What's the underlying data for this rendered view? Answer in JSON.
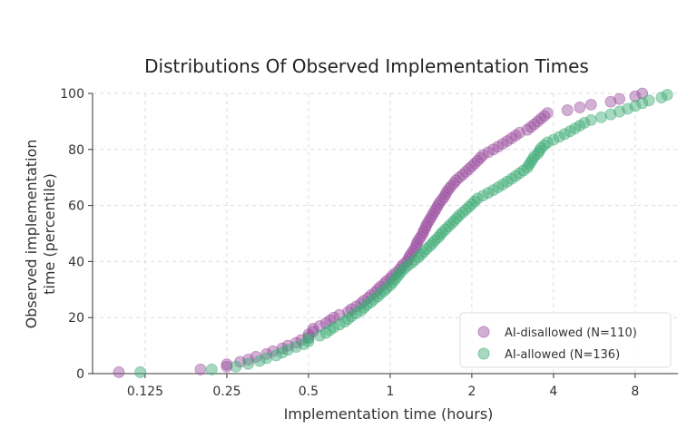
{
  "chart_data": {
    "type": "scatter",
    "title": "Distributions Of Observed Implementation Times",
    "xlabel": "Implementation time (hours)",
    "ylabel": [
      "Observed implementation",
      "time (percentile)"
    ],
    "x_scale": "log2",
    "xlim": [
      0.08,
      11.5
    ],
    "ylim": [
      0,
      100
    ],
    "x_ticks": [
      {
        "value": 0.125,
        "label": "0.125"
      },
      {
        "value": 0.25,
        "label": "0.25"
      },
      {
        "value": 0.5,
        "label": "0.5"
      },
      {
        "value": 1,
        "label": "1"
      },
      {
        "value": 2,
        "label": "2"
      },
      {
        "value": 4,
        "label": "4"
      },
      {
        "value": 8,
        "label": "8"
      }
    ],
    "y_ticks": [
      {
        "value": 0,
        "label": "0"
      },
      {
        "value": 20,
        "label": "20"
      },
      {
        "value": 40,
        "label": "40"
      },
      {
        "value": 60,
        "label": "60"
      },
      {
        "value": 80,
        "label": "80"
      },
      {
        "value": 100,
        "label": "100"
      }
    ],
    "grid": true,
    "legend_position": "bottom-right",
    "series": [
      {
        "name": "AI-disallowed (N=110)",
        "color": "#9b4f9f",
        "points": [
          [
            0.1,
            0.5
          ],
          [
            0.2,
            1.5
          ],
          [
            0.25,
            2.5
          ],
          [
            0.25,
            3.3
          ],
          [
            0.28,
            4.2
          ],
          [
            0.3,
            5
          ],
          [
            0.32,
            6
          ],
          [
            0.35,
            7
          ],
          [
            0.37,
            8
          ],
          [
            0.4,
            9
          ],
          [
            0.42,
            10
          ],
          [
            0.45,
            11
          ],
          [
            0.47,
            12
          ],
          [
            0.5,
            13
          ],
          [
            0.5,
            14
          ],
          [
            0.52,
            15
          ],
          [
            0.52,
            16
          ],
          [
            0.55,
            17
          ],
          [
            0.58,
            18
          ],
          [
            0.6,
            19
          ],
          [
            0.62,
            20
          ],
          [
            0.65,
            21
          ],
          [
            0.7,
            22
          ],
          [
            0.72,
            23
          ],
          [
            0.75,
            24
          ],
          [
            0.78,
            25
          ],
          [
            0.8,
            26
          ],
          [
            0.83,
            27
          ],
          [
            0.85,
            28
          ],
          [
            0.88,
            29
          ],
          [
            0.9,
            30
          ],
          [
            0.92,
            31
          ],
          [
            0.95,
            32
          ],
          [
            0.97,
            33
          ],
          [
            1.0,
            34
          ],
          [
            1.02,
            35
          ],
          [
            1.05,
            36
          ],
          [
            1.08,
            37
          ],
          [
            1.1,
            38
          ],
          [
            1.12,
            39
          ],
          [
            1.15,
            40
          ],
          [
            1.17,
            41
          ],
          [
            1.18,
            42
          ],
          [
            1.2,
            43
          ],
          [
            1.22,
            44
          ],
          [
            1.24,
            45
          ],
          [
            1.25,
            46
          ],
          [
            1.26,
            47
          ],
          [
            1.28,
            48
          ],
          [
            1.3,
            49
          ],
          [
            1.32,
            50
          ],
          [
            1.33,
            51
          ],
          [
            1.35,
            52
          ],
          [
            1.36,
            53
          ],
          [
            1.38,
            54
          ],
          [
            1.4,
            55
          ],
          [
            1.42,
            56
          ],
          [
            1.44,
            57
          ],
          [
            1.46,
            58
          ],
          [
            1.48,
            59
          ],
          [
            1.5,
            60
          ],
          [
            1.52,
            61
          ],
          [
            1.55,
            62
          ],
          [
            1.58,
            63
          ],
          [
            1.6,
            64
          ],
          [
            1.62,
            65
          ],
          [
            1.65,
            66
          ],
          [
            1.68,
            67
          ],
          [
            1.72,
            68
          ],
          [
            1.75,
            69
          ],
          [
            1.8,
            70
          ],
          [
            1.85,
            71
          ],
          [
            1.9,
            72
          ],
          [
            1.95,
            73
          ],
          [
            2.0,
            74
          ],
          [
            2.05,
            75
          ],
          [
            2.1,
            76
          ],
          [
            2.15,
            77
          ],
          [
            2.2,
            78
          ],
          [
            2.3,
            79
          ],
          [
            2.4,
            80
          ],
          [
            2.5,
            81
          ],
          [
            2.6,
            82
          ],
          [
            2.7,
            83
          ],
          [
            2.8,
            84
          ],
          [
            2.9,
            85
          ],
          [
            3.0,
            86
          ],
          [
            3.2,
            87
          ],
          [
            3.3,
            88
          ],
          [
            3.4,
            89
          ],
          [
            3.5,
            90
          ],
          [
            3.6,
            91
          ],
          [
            3.7,
            92
          ],
          [
            3.8,
            93
          ],
          [
            4.5,
            94
          ],
          [
            5.0,
            95
          ],
          [
            5.5,
            96
          ],
          [
            6.5,
            97
          ],
          [
            7.0,
            98
          ],
          [
            8.0,
            99
          ],
          [
            8.5,
            100
          ]
        ]
      },
      {
        "name": "AI-allowed (N=136)",
        "color": "#3cab74",
        "points": [
          [
            0.12,
            0.5
          ],
          [
            0.22,
            1.5
          ],
          [
            0.27,
            2.5
          ],
          [
            0.3,
            3.5
          ],
          [
            0.33,
            4.5
          ],
          [
            0.35,
            5.5
          ],
          [
            0.38,
            6.5
          ],
          [
            0.4,
            7.5
          ],
          [
            0.42,
            8.5
          ],
          [
            0.45,
            9.5
          ],
          [
            0.48,
            10.5
          ],
          [
            0.5,
            11.5
          ],
          [
            0.5,
            12.5
          ],
          [
            0.55,
            13.5
          ],
          [
            0.58,
            14.5
          ],
          [
            0.6,
            15.5
          ],
          [
            0.62,
            16.5
          ],
          [
            0.65,
            17.5
          ],
          [
            0.68,
            18.5
          ],
          [
            0.7,
            19.5
          ],
          [
            0.72,
            20.5
          ],
          [
            0.75,
            21.5
          ],
          [
            0.78,
            22.5
          ],
          [
            0.8,
            23.5
          ],
          [
            0.82,
            24.5
          ],
          [
            0.85,
            25.5
          ],
          [
            0.87,
            26.5
          ],
          [
            0.9,
            27.5
          ],
          [
            0.92,
            28.5
          ],
          [
            0.95,
            29.5
          ],
          [
            0.97,
            30.5
          ],
          [
            1.0,
            31.5
          ],
          [
            1.02,
            32.5
          ],
          [
            1.04,
            33.5
          ],
          [
            1.06,
            34.5
          ],
          [
            1.08,
            35.5
          ],
          [
            1.1,
            36.5
          ],
          [
            1.13,
            37.5
          ],
          [
            1.16,
            38.5
          ],
          [
            1.2,
            39.5
          ],
          [
            1.23,
            40.5
          ],
          [
            1.27,
            41.5
          ],
          [
            1.3,
            42.5
          ],
          [
            1.33,
            43.5
          ],
          [
            1.36,
            44.5
          ],
          [
            1.4,
            45.5
          ],
          [
            1.43,
            46.5
          ],
          [
            1.46,
            47.5
          ],
          [
            1.5,
            48.5
          ],
          [
            1.53,
            49.5
          ],
          [
            1.56,
            50.5
          ],
          [
            1.6,
            51.5
          ],
          [
            1.64,
            52.5
          ],
          [
            1.68,
            53.5
          ],
          [
            1.72,
            54.5
          ],
          [
            1.76,
            55.5
          ],
          [
            1.8,
            56.5
          ],
          [
            1.85,
            57.5
          ],
          [
            1.9,
            58.5
          ],
          [
            1.95,
            59.5
          ],
          [
            2.0,
            60.5
          ],
          [
            2.05,
            61.5
          ],
          [
            2.1,
            62.5
          ],
          [
            2.2,
            63.5
          ],
          [
            2.3,
            64.5
          ],
          [
            2.4,
            65.5
          ],
          [
            2.5,
            66.5
          ],
          [
            2.6,
            67.5
          ],
          [
            2.7,
            68.5
          ],
          [
            2.8,
            69.5
          ],
          [
            2.9,
            70.5
          ],
          [
            3.0,
            71.5
          ],
          [
            3.1,
            72.5
          ],
          [
            3.2,
            73.5
          ],
          [
            3.25,
            74.5
          ],
          [
            3.3,
            75.5
          ],
          [
            3.35,
            76.5
          ],
          [
            3.4,
            77.5
          ],
          [
            3.5,
            78.5
          ],
          [
            3.55,
            79.5
          ],
          [
            3.6,
            80.5
          ],
          [
            3.7,
            81.5
          ],
          [
            3.8,
            82.5
          ],
          [
            4.0,
            83.5
          ],
          [
            4.2,
            84.5
          ],
          [
            4.4,
            85.5
          ],
          [
            4.6,
            86.5
          ],
          [
            4.8,
            87.5
          ],
          [
            5.0,
            88.5
          ],
          [
            5.2,
            89.5
          ],
          [
            5.5,
            90.5
          ],
          [
            6.0,
            91.5
          ],
          [
            6.5,
            92.5
          ],
          [
            7.0,
            93.5
          ],
          [
            7.5,
            94.5
          ],
          [
            8.0,
            95.5
          ],
          [
            8.5,
            96.5
          ],
          [
            9.0,
            97.5
          ],
          [
            10.0,
            98.5
          ],
          [
            10.5,
            99.5
          ]
        ]
      }
    ]
  }
}
